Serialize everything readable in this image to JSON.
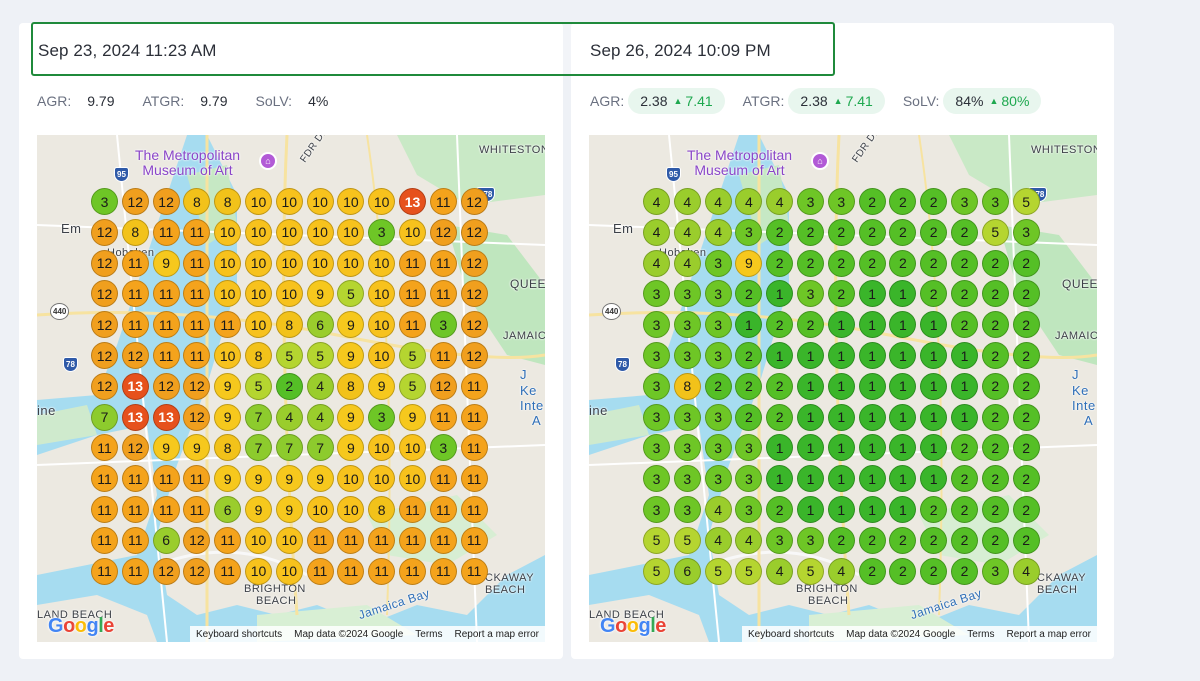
{
  "left": {
    "date": "Sep 23, 2024 11:23 AM",
    "metrics": [
      {
        "label": "AGR:",
        "value": "9.79"
      },
      {
        "label": "ATGR:",
        "value": "9.79"
      },
      {
        "label": "SoLV:",
        "value": "4%"
      }
    ],
    "grid": [
      [
        "3",
        "12",
        "12",
        "8",
        "8",
        "10",
        "10",
        "10",
        "10",
        "10",
        "13",
        "11",
        "12"
      ],
      [
        "12",
        "8",
        "11",
        "11",
        "10",
        "10",
        "10",
        "10",
        "10",
        "3",
        "10",
        "12",
        "12"
      ],
      [
        "12",
        "11",
        "9",
        "11",
        "10",
        "10",
        "10",
        "10",
        "10",
        "10",
        "11",
        "11",
        "12"
      ],
      [
        "12",
        "11",
        "11",
        "11",
        "10",
        "10",
        "10",
        "9",
        "5",
        "10",
        "11",
        "11",
        "12"
      ],
      [
        "12",
        "11",
        "11",
        "11",
        "11",
        "10",
        "8",
        "6",
        "9",
        "10",
        "11",
        "3",
        "12"
      ],
      [
        "12",
        "12",
        "11",
        "11",
        "10",
        "8",
        "5",
        "5",
        "9",
        "10",
        "5",
        "11",
        "12"
      ],
      [
        "12",
        "13",
        "12",
        "12",
        "9",
        "5",
        "2",
        "4",
        "8",
        "9",
        "5",
        "12",
        "11"
      ],
      [
        "7",
        "13",
        "13",
        "12",
        "9",
        "7",
        "4",
        "4",
        "9",
        "3",
        "9",
        "11",
        "11"
      ],
      [
        "11",
        "12",
        "9",
        "9",
        "8",
        "7",
        "7",
        "7",
        "9",
        "10",
        "10",
        "3",
        "11"
      ],
      [
        "11",
        "11",
        "11",
        "11",
        "9",
        "9",
        "9",
        "9",
        "10",
        "10",
        "10",
        "11",
        "11"
      ],
      [
        "11",
        "11",
        "11",
        "11",
        "6",
        "9",
        "9",
        "10",
        "10",
        "8",
        "11",
        "11",
        "11"
      ],
      [
        "11",
        "11",
        "6",
        "12",
        "11",
        "10",
        "10",
        "11",
        "11",
        "11",
        "11",
        "11",
        "11"
      ],
      [
        "11",
        "11",
        "12",
        "12",
        "11",
        "10",
        "10",
        "11",
        "11",
        "11",
        "11",
        "11",
        "11"
      ]
    ]
  },
  "right": {
    "date": "Sep 26, 2024 10:09 PM",
    "metrics": [
      {
        "label": "AGR:",
        "value": "2.38",
        "delta": "7.41"
      },
      {
        "label": "ATGR:",
        "value": "2.38",
        "delta": "7.41"
      },
      {
        "label": "SoLV:",
        "value": "84%",
        "delta": "80%"
      }
    ],
    "grid": [
      [
        "4",
        "4",
        "4",
        "4",
        "4",
        "3",
        "3",
        "2",
        "2",
        "2",
        "3",
        "3",
        "5"
      ],
      [
        "4",
        "4",
        "4",
        "3",
        "2",
        "2",
        "2",
        "2",
        "2",
        "2",
        "2",
        "5",
        "3"
      ],
      [
        "4",
        "4",
        "3",
        "9",
        "2",
        "2",
        "2",
        "2",
        "2",
        "2",
        "2",
        "2",
        "2"
      ],
      [
        "3",
        "3",
        "3",
        "2",
        "1",
        "3",
        "2",
        "1",
        "1",
        "2",
        "2",
        "2",
        "2"
      ],
      [
        "3",
        "3",
        "3",
        "1",
        "2",
        "2",
        "1",
        "1",
        "1",
        "1",
        "2",
        "2",
        "2"
      ],
      [
        "3",
        "3",
        "3",
        "2",
        "1",
        "1",
        "1",
        "1",
        "1",
        "1",
        "1",
        "2",
        "2"
      ],
      [
        "3",
        "8",
        "2",
        "2",
        "2",
        "1",
        "1",
        "1",
        "1",
        "1",
        "1",
        "2",
        "2"
      ],
      [
        "3",
        "3",
        "3",
        "2",
        "2",
        "1",
        "1",
        "1",
        "1",
        "1",
        "1",
        "2",
        "2"
      ],
      [
        "3",
        "3",
        "3",
        "3",
        "1",
        "1",
        "1",
        "1",
        "1",
        "1",
        "2",
        "2",
        "2"
      ],
      [
        "3",
        "3",
        "3",
        "3",
        "1",
        "1",
        "1",
        "1",
        "1",
        "1",
        "2",
        "2",
        "2"
      ],
      [
        "3",
        "3",
        "4",
        "3",
        "2",
        "1",
        "1",
        "1",
        "1",
        "2",
        "2",
        "2",
        "2"
      ],
      [
        "5",
        "5",
        "4",
        "4",
        "3",
        "3",
        "2",
        "2",
        "2",
        "2",
        "2",
        "2",
        "2"
      ],
      [
        "5",
        "6",
        "5",
        "5",
        "4",
        "5",
        "4",
        "2",
        "2",
        "2",
        "2",
        "3",
        "4"
      ]
    ]
  },
  "map": {
    "poi_line1": "The Metropolitan",
    "poi_line2": "Museum of Art",
    "labels": {
      "whitestone": "WHITESTONE",
      "queens": "QUEE",
      "jamaica": "JAMAIC",
      "brighton_1": "BRIGHTON",
      "brighton_2": "BEACH",
      "rockaway_1": "CKAWAY",
      "rockaway_2": "BEACH",
      "land_beach": "LAND BEACH",
      "jamaica_bay": "Jamaica Bay",
      "hoboken": "Hoboken",
      "em": "Em",
      "fdr": "FDR Dr",
      "ine": "ine",
      "ke": "Ke",
      "inte": "Inte",
      "j": "J",
      "a": "A"
    },
    "shields": {
      "i95": "95",
      "i678": "678",
      "i440": "440",
      "i78": "78"
    },
    "google": "Google",
    "attribution": [
      "Keyboard shortcuts",
      "Map data ©2024 Google",
      "Terms",
      "Report a map error"
    ]
  },
  "colors": {
    "scale": {
      "1": "#3ab52a",
      "2": "#55bf26",
      "3": "#6ec626",
      "4": "#9acd2c",
      "5": "#b5d530",
      "6": "#9acd2c",
      "7": "#8dcb2d",
      "8": "#f2c21a",
      "9": "#f6c81d",
      "10": "#f7c21d",
      "11": "#f4a31c",
      "12": "#f09f1e",
      "13": "#e6511c"
    },
    "delta": "#1ea84f",
    "selection": "#1f8a3b"
  }
}
